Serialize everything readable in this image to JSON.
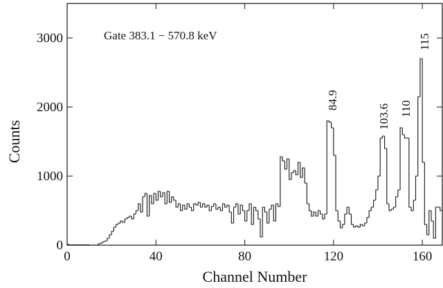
{
  "chart_data": {
    "type": "histogram",
    "x_label": "Channel Number",
    "y_label": "Counts",
    "annotations": [
      "Gate 383.1 − 570.8 keV",
      "84.9",
      "103.6",
      "110",
      "115"
    ],
    "color": "#111111",
    "xlim": [
      0,
      169
    ],
    "ylim": [
      0,
      3500
    ],
    "xticks": [
      0,
      40,
      80,
      120,
      160
    ],
    "yticks": [
      0,
      1000,
      2000,
      3000
    ],
    "bins": [
      0,
      1,
      2,
      3,
      4,
      5,
      6,
      7,
      8,
      9,
      10,
      11,
      12,
      13,
      14,
      15,
      16,
      17,
      18,
      19,
      20,
      21,
      22,
      23,
      24,
      25,
      26,
      27,
      28,
      29,
      30,
      31,
      32,
      33,
      34,
      35,
      36,
      37,
      38,
      39,
      40,
      41,
      42,
      43,
      44,
      45,
      46,
      47,
      48,
      49,
      50,
      51,
      52,
      53,
      54,
      55,
      56,
      57,
      58,
      59,
      60,
      61,
      62,
      63,
      64,
      65,
      66,
      67,
      68,
      69,
      70,
      71,
      72,
      73,
      74,
      75,
      76,
      77,
      78,
      79,
      80,
      81,
      82,
      83,
      84,
      85,
      86,
      87,
      88,
      89,
      90,
      91,
      92,
      93,
      94,
      95,
      96,
      97,
      98,
      99,
      100,
      101,
      102,
      103,
      104,
      105,
      106,
      107,
      108,
      109,
      110,
      111,
      112,
      113,
      114,
      115,
      116,
      117,
      118,
      119,
      120,
      121,
      122,
      123,
      124,
      125,
      126,
      127,
      128,
      129,
      130,
      131,
      132,
      133,
      134,
      135,
      136,
      137,
      138,
      139,
      140,
      141,
      142,
      143,
      144,
      145,
      146,
      147,
      148,
      149,
      150,
      151,
      152,
      153,
      154,
      155,
      156,
      157,
      158,
      159,
      160,
      161,
      162,
      163,
      164,
      165,
      166,
      167,
      168,
      169
    ],
    "values": [
      10,
      5,
      5,
      5,
      5,
      5,
      5,
      5,
      5,
      5,
      0,
      0,
      0,
      0,
      20,
      30,
      50,
      60,
      100,
      150,
      200,
      260,
      300,
      320,
      350,
      330,
      380,
      400,
      420,
      380,
      450,
      500,
      600,
      480,
      700,
      750,
      420,
      720,
      600,
      750,
      650,
      780,
      700,
      760,
      600,
      780,
      620,
      700,
      650,
      550,
      600,
      500,
      580,
      520,
      600,
      550,
      500,
      600,
      580,
      620,
      550,
      600,
      550,
      580,
      500,
      560,
      600,
      520,
      550,
      500,
      600,
      550,
      580,
      480,
      320,
      550,
      600,
      450,
      580,
      500,
      350,
      500,
      600,
      300,
      550,
      500,
      380,
      120,
      550,
      480,
      320,
      520,
      580,
      350,
      600,
      560,
      1280,
      1220,
      1100,
      1250,
      950,
      1050,
      1080,
      1020,
      1200,
      980,
      1120,
      900,
      600,
      500,
      420,
      480,
      420,
      500,
      450,
      380,
      450,
      1800,
      1780,
      1700,
      1300,
      500,
      350,
      250,
      300,
      450,
      550,
      450,
      300,
      260,
      280,
      260,
      300,
      280,
      320,
      400,
      500,
      550,
      650,
      800,
      1000,
      1550,
      1580,
      1400,
      600,
      500,
      520,
      550,
      700,
      800,
      1700,
      1600,
      1550,
      1550,
      550,
      500,
      650,
      1000,
      2150,
      2700,
      1200,
      300,
      150,
      500,
      350,
      100,
      550,
      550,
      500
    ]
  }
}
